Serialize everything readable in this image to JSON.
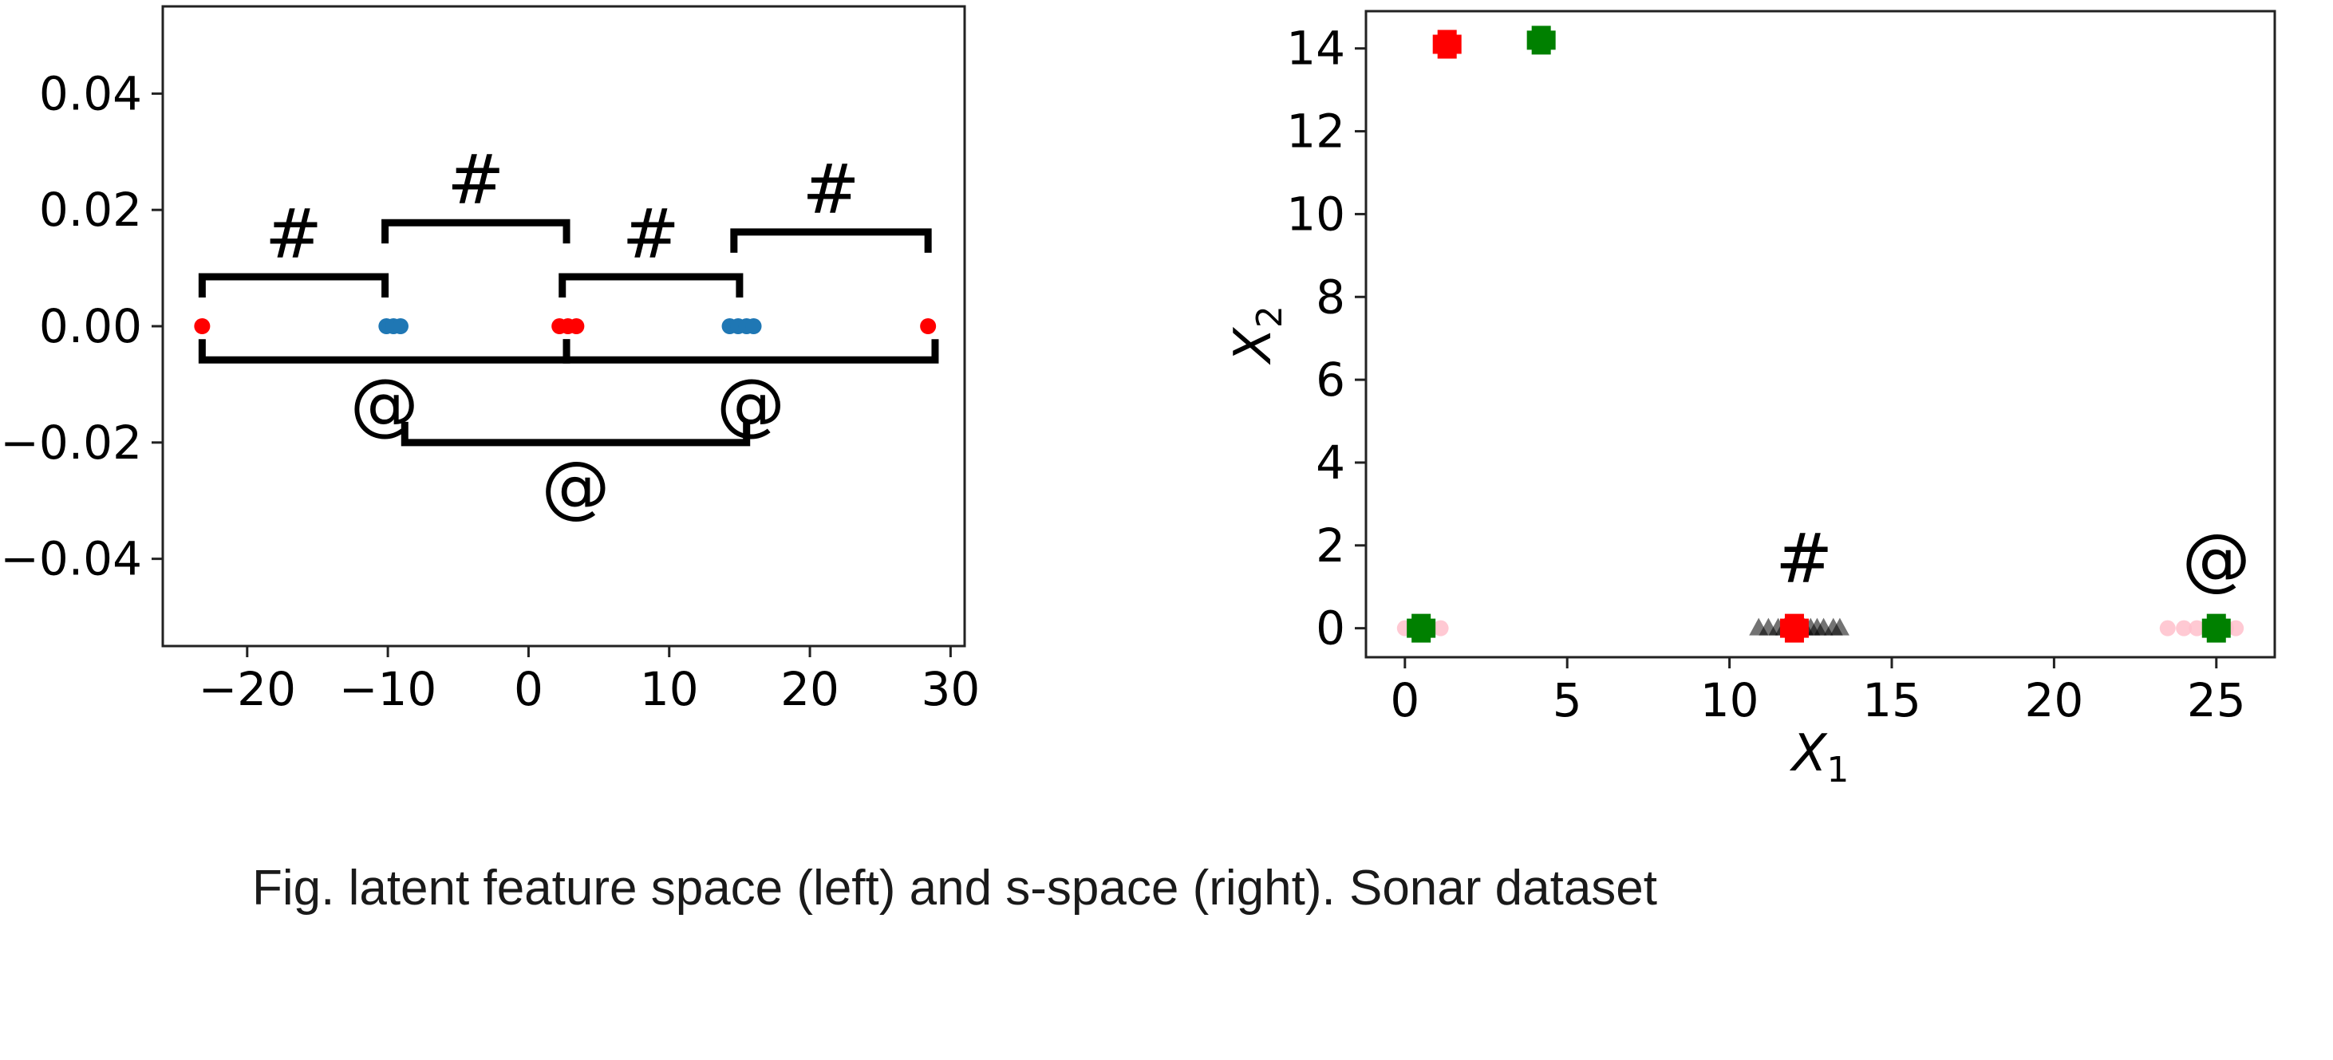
{
  "caption": "Fig. latent feature space (left) and s-space (right). Sonar dataset",
  "chart_data": [
    {
      "type": "scatter",
      "xlim": [
        -26,
        31
      ],
      "ylim": [
        -0.055,
        0.055
      ],
      "xticks": [
        -20,
        -10,
        0,
        10,
        20,
        30
      ],
      "yticks": [
        0.04,
        0.02,
        0.0,
        -0.02,
        -0.04
      ],
      "xtick_labels": [
        "−20",
        "−10",
        "0",
        "10",
        "20",
        "30"
      ],
      "ytick_labels": [
        "0.04",
        "0.02",
        "0.00",
        "−0.02",
        "−0.04"
      ],
      "grid": false,
      "series": [
        {
          "color": "#ff0000",
          "points": [
            [
              -23.2,
              0
            ],
            [
              2.2,
              0
            ],
            [
              2.8,
              0
            ],
            [
              3.4,
              0
            ],
            [
              28.4,
              0
            ]
          ]
        },
        {
          "color": "#1f77b4",
          "points": [
            [
              -10.1,
              0
            ],
            [
              -9.6,
              0
            ],
            [
              -9.1,
              0
            ],
            [
              14.3,
              0
            ],
            [
              14.9,
              0
            ],
            [
              15.5,
              0
            ],
            [
              16.0,
              0
            ]
          ]
        }
      ],
      "brackets": [
        {
          "x1": -23.2,
          "x2": -10.2,
          "y": 0.0085,
          "dir": "up",
          "label": "#"
        },
        {
          "x1": -10.2,
          "x2": 2.7,
          "y": 0.0178,
          "dir": "up",
          "label": "#"
        },
        {
          "x1": 2.4,
          "x2": 15.0,
          "y": 0.0085,
          "dir": "up",
          "label": "#"
        },
        {
          "x1": 14.6,
          "x2": 28.4,
          "y": 0.0162,
          "dir": "up",
          "label": "#"
        },
        {
          "x1": -23.2,
          "x2": 2.7,
          "y": -0.0058,
          "dir": "down",
          "label": "@"
        },
        {
          "x1": 2.7,
          "x2": 28.9,
          "y": -0.0058,
          "dir": "down",
          "label": "@"
        },
        {
          "x1": -8.8,
          "x2": 15.5,
          "y": -0.02,
          "dir": "down",
          "label": "@"
        }
      ]
    },
    {
      "type": "scatter",
      "xlim": [
        -1.2,
        26.8
      ],
      "ylim": [
        -0.7,
        14.9
      ],
      "xticks": [
        0,
        5,
        10,
        15,
        20,
        25
      ],
      "yticks": [
        0,
        2,
        4,
        6,
        8,
        10,
        12,
        14
      ],
      "xtick_labels": [
        "0",
        "5",
        "10",
        "15",
        "20",
        "25"
      ],
      "ytick_labels": [
        "0",
        "2",
        "4",
        "6",
        "8",
        "10",
        "12",
        "14"
      ],
      "xlabel": "X",
      "xlabel_sub": "1",
      "ylabel": "X",
      "ylabel_sub": "2",
      "grid": false,
      "series": [
        {
          "color": "#ffc0cb",
          "marker": "circle",
          "points": [
            [
              0.0,
              0
            ],
            [
              0.3,
              0
            ],
            [
              0.7,
              0
            ],
            [
              1.1,
              0
            ],
            [
              23.5,
              0
            ],
            [
              24.0,
              0
            ],
            [
              24.4,
              0
            ],
            [
              24.8,
              0
            ],
            [
              25.3,
              0
            ],
            [
              25.6,
              0
            ]
          ]
        },
        {
          "color": "#000000",
          "marker": "triangle",
          "points": [
            [
              10.9,
              0
            ],
            [
              11.2,
              0
            ],
            [
              11.5,
              0
            ],
            [
              11.7,
              0
            ],
            [
              11.9,
              0
            ],
            [
              12.1,
              0
            ],
            [
              12.3,
              0
            ],
            [
              12.5,
              0
            ],
            [
              12.7,
              0
            ],
            [
              12.9,
              0
            ],
            [
              13.2,
              0
            ],
            [
              13.4,
              0
            ]
          ]
        },
        {
          "color": "#ff0000",
          "marker": "plus",
          "points": [
            [
              1.3,
              14.1
            ],
            [
              12.0,
              0
            ]
          ]
        },
        {
          "color": "#008000",
          "marker": "plus",
          "points": [
            [
              4.2,
              14.2
            ],
            [
              0.5,
              0
            ],
            [
              25.0,
              0
            ]
          ]
        }
      ],
      "annotations": [
        {
          "text": "#",
          "x": 12.3,
          "y": 1.5
        },
        {
          "text": "@",
          "x": 25.0,
          "y": 1.5
        }
      ]
    }
  ]
}
